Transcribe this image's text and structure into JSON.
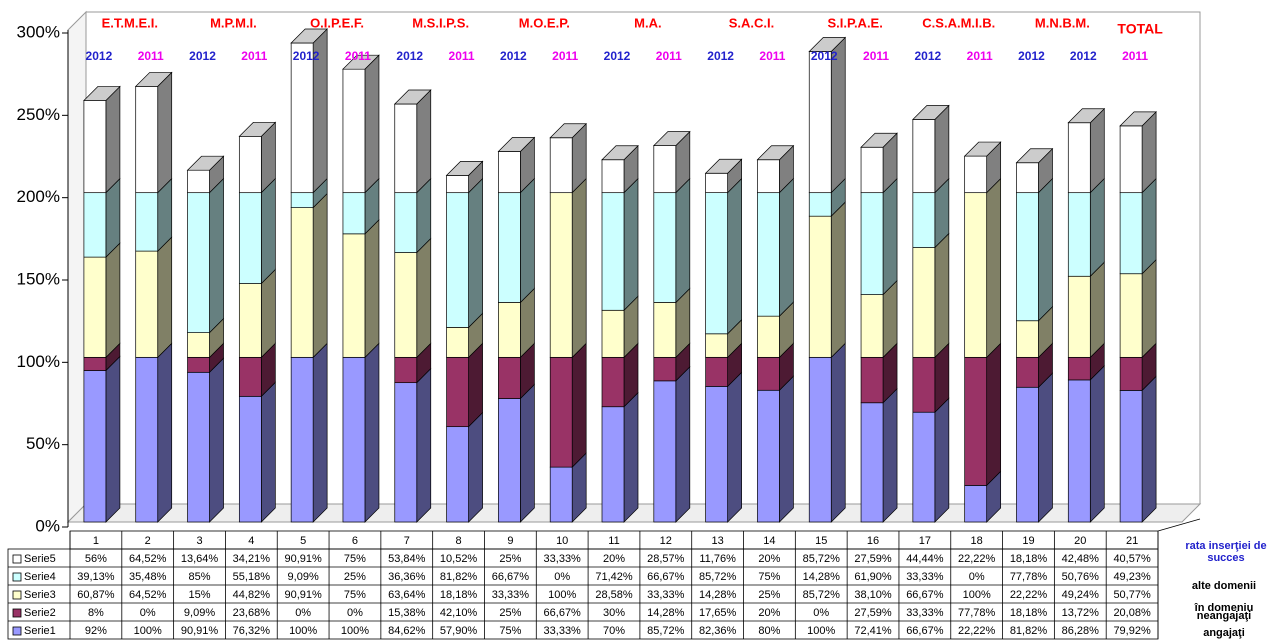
{
  "chart_data": {
    "type": "bar3d_stacked",
    "categories": [
      "1",
      "2",
      "3",
      "4",
      "5",
      "6",
      "7",
      "8",
      "9",
      "10",
      "11",
      "12",
      "13",
      "14",
      "15",
      "16",
      "17",
      "18",
      "19",
      "20",
      "21"
    ],
    "series": [
      {
        "name": "Serie1",
        "color": "#9999ff",
        "values": [
          92,
          100,
          90.91,
          76.32,
          100,
          100,
          84.62,
          57.9,
          75,
          33.33,
          70,
          85.72,
          82.36,
          80,
          100,
          72.41,
          66.67,
          22.22,
          81.82,
          86.28,
          79.92
        ],
        "value_labels": [
          "92%",
          "100%",
          "90,91%",
          "76,32%",
          "100%",
          "100%",
          "84,62%",
          "57,90%",
          "75%",
          "33,33%",
          "70%",
          "85,72%",
          "82,36%",
          "80%",
          "100%",
          "72,41%",
          "66,67%",
          "22,22%",
          "81,82%",
          "86,28%",
          "79,92%"
        ]
      },
      {
        "name": "Serie2",
        "color": "#993366",
        "values": [
          8,
          0,
          9.09,
          23.68,
          0,
          0,
          15.38,
          42.1,
          25,
          66.67,
          30,
          14.28,
          17.65,
          20,
          0,
          27.59,
          33.33,
          77.78,
          18.18,
          13.72,
          20.08
        ],
        "value_labels": [
          "8%",
          "0%",
          "9,09%",
          "23,68%",
          "0%",
          "0%",
          "15,38%",
          "42,10%",
          "25%",
          "66,67%",
          "30%",
          "14,28%",
          "17,65%",
          "20%",
          "0%",
          "27,59%",
          "33,33%",
          "77,78%",
          "18,18%",
          "13,72%",
          "20,08%"
        ]
      },
      {
        "name": "Serie3",
        "color": "#ffffcc",
        "values": [
          60.87,
          64.52,
          15,
          44.82,
          90.91,
          75,
          63.64,
          18.18,
          33.33,
          100,
          28.58,
          33.33,
          14.28,
          25,
          85.72,
          38.1,
          66.67,
          100,
          22.22,
          49.24,
          50.77
        ],
        "value_labels": [
          "60,87%",
          "64,52%",
          "15%",
          "44,82%",
          "90,91%",
          "75%",
          "63,64%",
          "18,18%",
          "33,33%",
          "100%",
          "28,58%",
          "33,33%",
          "14,28%",
          "25%",
          "85,72%",
          "38,10%",
          "66,67%",
          "100%",
          "22,22%",
          "49,24%",
          "50,77%"
        ]
      },
      {
        "name": "Serie4",
        "color": "#ccffff",
        "values": [
          39.13,
          35.48,
          85,
          55.18,
          9.09,
          25,
          36.36,
          81.82,
          66.67,
          0,
          71.42,
          66.67,
          85.72,
          75,
          14.28,
          61.9,
          33.33,
          0,
          77.78,
          50.76,
          49.23
        ],
        "value_labels": [
          "39,13%",
          "35,48%",
          "85%",
          "55,18%",
          "9,09%",
          "25%",
          "36,36%",
          "81,82%",
          "66,67%",
          "0%",
          "71,42%",
          "66,67%",
          "85,72%",
          "75%",
          "14,28%",
          "61,90%",
          "33,33%",
          "0%",
          "77,78%",
          "50,76%",
          "49,23%"
        ]
      },
      {
        "name": "Serie5",
        "color": "#ffffff",
        "values": [
          56,
          64.52,
          13.64,
          34.21,
          90.91,
          75,
          53.84,
          10.52,
          25,
          33.33,
          20,
          28.57,
          11.76,
          20,
          85.72,
          27.59,
          44.44,
          22.22,
          18.18,
          42.48,
          40.57
        ],
        "value_labels": [
          "56%",
          "64,52%",
          "13,64%",
          "34,21%",
          "90,91%",
          "75%",
          "53,84%",
          "10,52%",
          "25%",
          "33,33%",
          "20%",
          "28,57%",
          "11,76%",
          "20%",
          "85,72%",
          "27,59%",
          "44,44%",
          "22,22%",
          "18,18%",
          "42,48%",
          "40,57%"
        ]
      }
    ],
    "ylim": [
      0,
      300
    ],
    "yticks": [
      {
        "value": 0,
        "label": "0%"
      },
      {
        "value": 50,
        "label": "50%"
      },
      {
        "value": 100,
        "label": "100%"
      },
      {
        "value": 150,
        "label": "150%"
      },
      {
        "value": 200,
        "label": "200%"
      },
      {
        "value": 250,
        "label": "250%"
      },
      {
        "value": 300,
        "label": "300%"
      }
    ],
    "group_labels": [
      "E.T.M.E.I.",
      "M.P.M.I.",
      "O.I.P.E.F.",
      "M.S.I.P.S.",
      "M.O.E.P.",
      "M.A.",
      "S.A.C.I.",
      "S.I.P.A.E.",
      "C.S.A.M.I.B.",
      "M.N.B.M.",
      "TOTAL"
    ],
    "group_label_color": "#ff0000",
    "year_labels": [
      {
        "text": "2012",
        "color": "#2222cc"
      },
      {
        "text": "2011",
        "color": "#ee00ee"
      },
      {
        "text": "2012",
        "color": "#2222cc"
      },
      {
        "text": "2011",
        "color": "#ee00ee"
      },
      {
        "text": "2012",
        "color": "#2222cc"
      },
      {
        "text": "2011",
        "color": "#ee00ee"
      },
      {
        "text": "2012",
        "color": "#2222cc"
      },
      {
        "text": "2011",
        "color": "#ee00ee"
      },
      {
        "text": "2012",
        "color": "#2222cc"
      },
      {
        "text": "2011",
        "color": "#ee00ee"
      },
      {
        "text": "2012",
        "color": "#2222cc"
      },
      {
        "text": "2011",
        "color": "#ee00ee"
      },
      {
        "text": "2012",
        "color": "#2222cc"
      },
      {
        "text": "2011",
        "color": "#ee00ee"
      },
      {
        "text": "2012",
        "color": "#2222cc"
      },
      {
        "text": "2011",
        "color": "#ee00ee"
      },
      {
        "text": "2012",
        "color": "#2222cc"
      },
      {
        "text": "2011",
        "color": "#ee00ee"
      },
      {
        "text": "2012",
        "color": "#2222cc"
      },
      {
        "text": "2012",
        "color": "#2222cc"
      },
      {
        "text": "2011",
        "color": "#ee00ee"
      }
    ],
    "side_labels": [
      {
        "text": "rata inserţiei de succes",
        "color": "#2222cc"
      },
      {
        "text": "alte domenii",
        "color": "#000000"
      },
      {
        "text": "în domeniu",
        "color": "#000000"
      },
      {
        "text": "neangajaţi",
        "color": "#000000"
      },
      {
        "text": "angajaţi",
        "color": "#000000"
      }
    ]
  }
}
